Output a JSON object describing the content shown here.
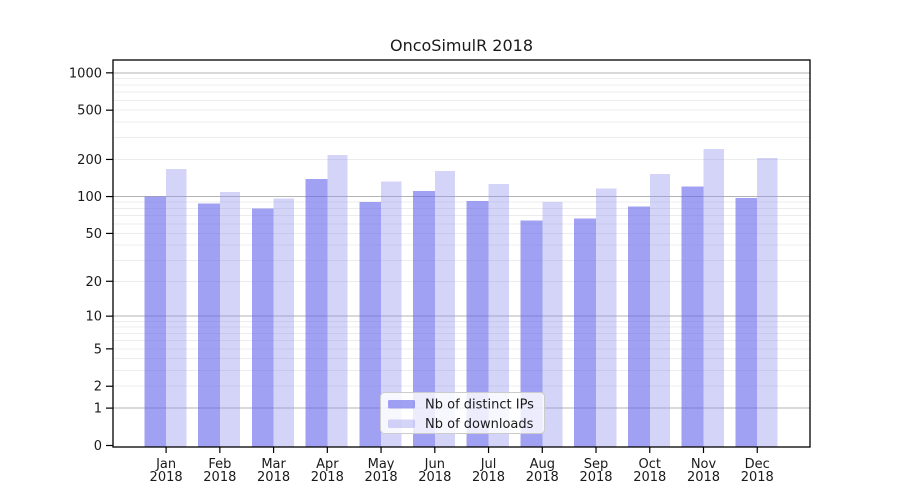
{
  "chart_data": {
    "type": "bar",
    "title": "OncoSimulR 2018",
    "categories": [
      "Jan",
      "Feb",
      "Mar",
      "Apr",
      "May",
      "Jun",
      "Jul",
      "Aug",
      "Sep",
      "Oct",
      "Nov",
      "Dec"
    ],
    "category_year": "2018",
    "series": [
      {
        "name": "Nb of distinct IPs",
        "values": [
          100,
          88,
          80,
          139,
          90,
          111,
          92,
          64,
          66,
          83,
          121,
          97
        ]
      },
      {
        "name": "Nb of downloads",
        "values": [
          167,
          109,
          96,
          217,
          133,
          161,
          126,
          90,
          116,
          152,
          243,
          205
        ]
      }
    ],
    "yscale": "log1p",
    "yticks": [
      0,
      1,
      2,
      5,
      10,
      20,
      50,
      100,
      200,
      500,
      1000
    ],
    "ylim": [
      0,
      1270
    ],
    "grid": "horizontal",
    "legend_position": "lower center",
    "colors": {
      "distinct_ips_fill": "rgba(104,104,235,0.62)",
      "downloads_fill": "rgba(148,148,240,0.40)",
      "major_gridline": "#b3b3b3",
      "minor_gridline": "#ececec",
      "axis_spine": "#000000",
      "text": "#1a1a1a",
      "legend_border": "#cccccc",
      "legend_bg": "rgba(255,255,255,0.8)"
    }
  }
}
